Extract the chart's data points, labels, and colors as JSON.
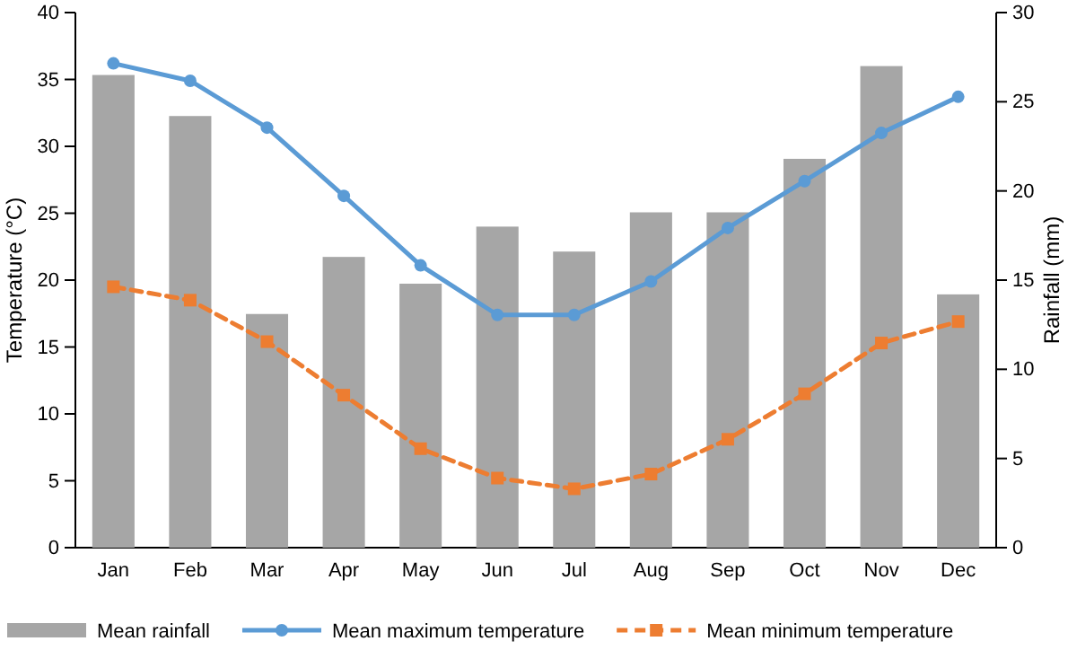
{
  "chart_data": {
    "type": "bar",
    "categories": [
      "Jan",
      "Feb",
      "Mar",
      "Apr",
      "May",
      "Jun",
      "Jul",
      "Aug",
      "Sep",
      "Oct",
      "Nov",
      "Dec"
    ],
    "ylabel": "Temperature (°C)",
    "y2label": "Rainfall (mm)",
    "ylim": [
      0,
      40
    ],
    "yticks": [
      0,
      5,
      10,
      15,
      20,
      25,
      30,
      35,
      40
    ],
    "y2lim": [
      0,
      30
    ],
    "y2ticks": [
      0,
      5,
      10,
      15,
      20,
      25,
      30
    ],
    "legend": "bottom",
    "grid": false,
    "series": [
      {
        "name": "Mean rainfall",
        "axis": "y2",
        "color": "#a6a6a6",
        "values": [
          26.5,
          24.2,
          13.1,
          16.3,
          14.8,
          18.0,
          16.6,
          18.8,
          18.8,
          21.8,
          27.0,
          14.2
        ]
      },
      {
        "name": "Mean maximum temperature",
        "type": "line",
        "color": "#5b9bd5",
        "marker": "circle",
        "line_style": "solid",
        "values": [
          36.2,
          34.9,
          31.4,
          26.3,
          21.1,
          17.4,
          17.4,
          19.9,
          23.9,
          27.4,
          31.0,
          33.7
        ]
      },
      {
        "name": "Mean minimum temperature",
        "type": "line",
        "color": "#ed7d31",
        "marker": "square",
        "line_style": "dashed",
        "values": [
          19.5,
          18.5,
          15.4,
          11.4,
          7.4,
          5.2,
          4.4,
          5.5,
          8.1,
          11.5,
          15.3,
          16.9
        ]
      }
    ]
  }
}
